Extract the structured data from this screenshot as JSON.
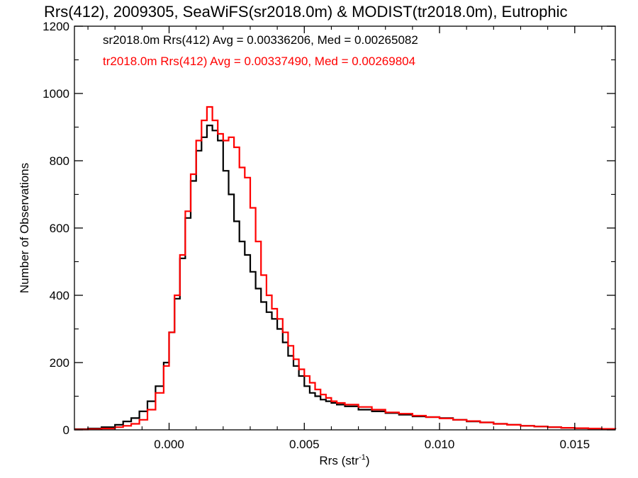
{
  "chart_data": {
    "type": "histogram-step",
    "title": "Rrs(412), 2009305, SeaWiFS(sr2018.0m) & MODIST(tr2018.0m), Eutrophic",
    "xlabel": "Rrs (str",
    "xlabel_sup": "-1",
    "xlabel_close": ")",
    "ylabel": "Number of Observations",
    "xlim": [
      -0.0035,
      0.0165
    ],
    "ylim": [
      0,
      1200
    ],
    "x_ticks": [
      0.0,
      0.005,
      0.01,
      0.015
    ],
    "x_tick_labels": [
      "0.000",
      "0.005",
      "0.010",
      "0.015"
    ],
    "y_ticks": [
      0,
      200,
      400,
      600,
      800,
      1000,
      1200
    ],
    "y_tick_labels": [
      "0",
      "200",
      "400",
      "600",
      "800",
      "1000",
      "1200"
    ],
    "grid": false,
    "legend": [
      {
        "text": "sr2018.0m Rrs(412) Avg = 0.00336206, Med = 0.00265082",
        "color": "#000000"
      },
      {
        "text": "tr2018.0m Rrs(412) Avg = 0.00337490, Med = 0.00269804",
        "color": "#ff0000"
      }
    ],
    "series": [
      {
        "color": "#000000",
        "x": [
          -0.0035,
          -0.003,
          -0.0025,
          -0.002,
          -0.0017,
          -0.0014,
          -0.0011,
          -0.0008,
          -0.0005,
          -0.0002,
          0.0,
          0.0002,
          0.0004,
          0.0006,
          0.0008,
          0.001,
          0.0012,
          0.0014,
          0.0016,
          0.0018,
          0.002,
          0.0022,
          0.0024,
          0.0026,
          0.0028,
          0.003,
          0.0032,
          0.0034,
          0.0036,
          0.0038,
          0.004,
          0.0042,
          0.0044,
          0.0046,
          0.0048,
          0.005,
          0.0052,
          0.0054,
          0.0056,
          0.0058,
          0.006,
          0.0062,
          0.0065,
          0.007,
          0.0075,
          0.008,
          0.0085,
          0.009,
          0.0095,
          0.01,
          0.0105,
          0.011,
          0.0115,
          0.012,
          0.0125,
          0.013,
          0.0135,
          0.014,
          0.0145,
          0.015,
          0.0155,
          0.016,
          0.0165
        ],
        "y": [
          2,
          4,
          8,
          15,
          25,
          35,
          55,
          85,
          130,
          200,
          290,
          390,
          510,
          630,
          740,
          830,
          870,
          905,
          890,
          860,
          770,
          700,
          620,
          560,
          520,
          470,
          420,
          380,
          350,
          330,
          300,
          260,
          220,
          190,
          160,
          130,
          110,
          100,
          90,
          85,
          80,
          75,
          70,
          60,
          55,
          50,
          45,
          40,
          38,
          35,
          30,
          25,
          22,
          18,
          15,
          12,
          10,
          8,
          6,
          5,
          4,
          3,
          2
        ]
      },
      {
        "color": "#ff0000",
        "x": [
          -0.0035,
          -0.003,
          -0.0025,
          -0.002,
          -0.0017,
          -0.0014,
          -0.0011,
          -0.0008,
          -0.0005,
          -0.0002,
          0.0,
          0.0002,
          0.0004,
          0.0006,
          0.0008,
          0.001,
          0.0012,
          0.0014,
          0.0016,
          0.0018,
          0.002,
          0.0022,
          0.0024,
          0.0026,
          0.0028,
          0.003,
          0.0032,
          0.0034,
          0.0036,
          0.0038,
          0.004,
          0.0042,
          0.0044,
          0.0046,
          0.0048,
          0.005,
          0.0052,
          0.0054,
          0.0056,
          0.0058,
          0.006,
          0.0062,
          0.0065,
          0.007,
          0.0075,
          0.008,
          0.0085,
          0.009,
          0.0095,
          0.01,
          0.0105,
          0.011,
          0.0115,
          0.012,
          0.0125,
          0.013,
          0.0135,
          0.014,
          0.0145,
          0.015,
          0.0155,
          0.016,
          0.0165
        ],
        "y": [
          1,
          2,
          4,
          8,
          12,
          18,
          30,
          60,
          110,
          190,
          290,
          400,
          520,
          650,
          760,
          860,
          920,
          960,
          920,
          880,
          860,
          870,
          840,
          780,
          750,
          660,
          560,
          460,
          400,
          360,
          330,
          290,
          250,
          210,
          180,
          160,
          140,
          120,
          105,
          95,
          85,
          80,
          75,
          68,
          60,
          52,
          48,
          42,
          38,
          34,
          30,
          26,
          22,
          18,
          15,
          12,
          10,
          8,
          6,
          5,
          4,
          3,
          2
        ]
      }
    ]
  }
}
